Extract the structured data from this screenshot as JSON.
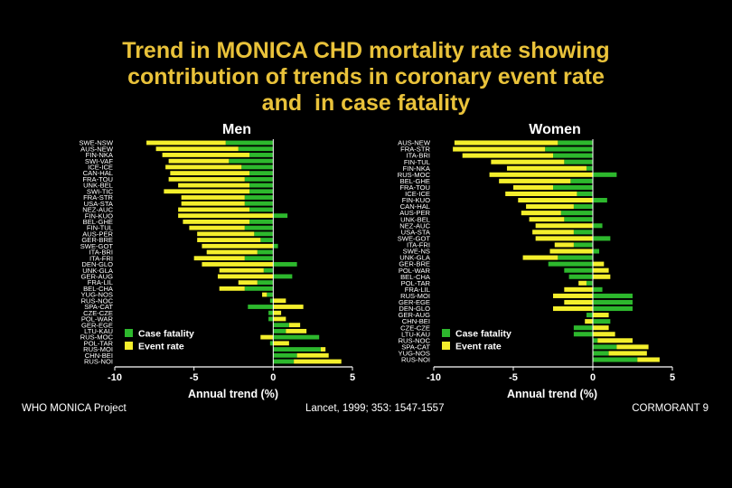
{
  "title_lines": [
    "Trend in MONICA CHD mortality rate showing",
    "contribution of trends in coronary event rate",
    "and  in case fatality"
  ],
  "footer": {
    "left": "WHO MONICA Project",
    "center": "Lancet, 1999; 353: 1547-1557",
    "right": "CORMORANT 9"
  },
  "colors": {
    "case_fatality": "#2db82d",
    "event_rate": "#f4ef2c",
    "axis": "#ffffff",
    "background": "#000000",
    "title": "#e9c23a"
  },
  "chart_data": [
    {
      "type": "bar",
      "orientation": "horizontal",
      "stacked": true,
      "title": "Men",
      "xlabel": "Annual trend (%)",
      "xlim": [
        -10,
        5
      ],
      "xticks": [
        -10,
        -5,
        0,
        5
      ],
      "legend": [
        "Case fatality",
        "Event rate"
      ],
      "legend_position": "bottom-left",
      "categories": [
        "SWE-NSW",
        "AUS-NEW",
        "FIN-NKA",
        "SWI-VAF",
        "ICE-ICE",
        "CAN-HAL",
        "FRA-TOU",
        "UNK-BEL",
        "SWI-TIC",
        "FRA-STR",
        "USA-STA",
        "NEZ-AUC",
        "FIN-KUO",
        "BEL-GHE",
        "FIN-TUL",
        "AUS-PER",
        "GER-BRE",
        "SWE-GOT",
        "ITA-BRI",
        "ITA-FRI",
        "DEN-GLO",
        "UNK-GLA",
        "GER-AUG",
        "FRA-LIL",
        "BEL-CHA",
        "YUG-NOS",
        "RUS-NOC",
        "SPA-CAT",
        "CZE-CZE",
        "POL-WAR",
        "GER-EGE",
        "LTU-KAU",
        "RUS-MOC",
        "POL-TAR",
        "RUS-MOI",
        "CHN-BEI",
        "RUS-NOI"
      ],
      "series": [
        {
          "name": "Case fatality",
          "values": [
            -3.0,
            -2.2,
            -1.5,
            -2.8,
            -2.0,
            -1.5,
            -1.8,
            -1.5,
            -1.5,
            -1.8,
            -1.8,
            -1.5,
            0.9,
            -1.5,
            -1.8,
            -1.2,
            -0.8,
            0.3,
            -1.0,
            -1.8,
            1.5,
            -0.6,
            1.2,
            -1.0,
            -1.8,
            -0.4,
            -0.2,
            -1.6,
            -0.3,
            -0.3,
            1.0,
            0.8,
            2.9,
            -0.2,
            3.0,
            1.5,
            1.3
          ]
        },
        {
          "name": "Event rate",
          "values": [
            -5.0,
            -5.2,
            -5.5,
            -3.8,
            -4.8,
            -5.0,
            -4.8,
            -4.5,
            -5.4,
            -4.0,
            -4.0,
            -4.5,
            -6.0,
            -4.2,
            -3.5,
            -3.6,
            -4.0,
            -4.5,
            -3.2,
            -3.2,
            -4.5,
            -2.8,
            -3.5,
            -1.2,
            -1.6,
            -0.3,
            0.8,
            1.9,
            0.5,
            0.8,
            0.7,
            1.3,
            -0.8,
            1.0,
            0.3,
            2.0,
            3.0
          ]
        }
      ]
    },
    {
      "type": "bar",
      "orientation": "horizontal",
      "stacked": true,
      "title": "Women",
      "xlabel": "Annual trend (%)",
      "xlim": [
        -10,
        5
      ],
      "xticks": [
        -10,
        -5,
        0,
        5
      ],
      "legend": [
        "Case fatality",
        "Event rate"
      ],
      "legend_position": "bottom-left",
      "categories": [
        "AUS-NEW",
        "FRA-STR",
        "ITA-BRI",
        "FIN-TUL",
        "FIN-NKA",
        "RUS-MOC",
        "BEL-GHE",
        "FRA-TOU",
        "ICE-ICE",
        "FIN-KUO",
        "CAN-HAL",
        "AUS-PER",
        "UNK-BEL",
        "NEZ-AUC",
        "USA-STA",
        "SWE-GOT",
        "ITA-FRI",
        "SWE-NS",
        "UNK-GLA",
        "GER-BRE",
        "POL-WAR",
        "BEL-CHA",
        "POL-TAR",
        "FRA-LIL",
        "RUS-MOI",
        "GER-EGE",
        "DEN-GLO",
        "GER-AUG",
        "CHN-BEI",
        "CZE-CZE",
        "LTU-KAU",
        "RUS-NOC",
        "SPA-CAT",
        "YUG-NOS",
        "RUS-NOI"
      ],
      "series": [
        {
          "name": "Case fatality",
          "values": [
            -2.2,
            -3.0,
            -2.5,
            -1.8,
            -0.4,
            1.5,
            -1.4,
            -2.5,
            -1.0,
            0.9,
            -1.2,
            -2.0,
            -1.8,
            0.6,
            -1.2,
            1.1,
            -1.2,
            0.4,
            -2.2,
            -2.8,
            -1.8,
            -1.5,
            -0.4,
            0.6,
            2.5,
            2.5,
            2.5,
            -0.4,
            1.1,
            -1.2,
            -1.2,
            0.3,
            1.5,
            1.0,
            2.8
          ]
        },
        {
          "name": "Event rate",
          "values": [
            -6.5,
            -5.8,
            -5.7,
            -4.6,
            -5.0,
            -6.5,
            -4.5,
            -2.5,
            -4.5,
            -4.7,
            -3.0,
            -2.5,
            -2.2,
            -3.6,
            -2.6,
            -3.6,
            -1.2,
            -2.7,
            -2.2,
            0.7,
            1.0,
            1.1,
            -0.5,
            -1.8,
            -2.5,
            -1.8,
            -2.5,
            1.0,
            -0.5,
            1.0,
            1.4,
            2.2,
            2.0,
            2.4,
            1.4
          ]
        }
      ]
    }
  ]
}
